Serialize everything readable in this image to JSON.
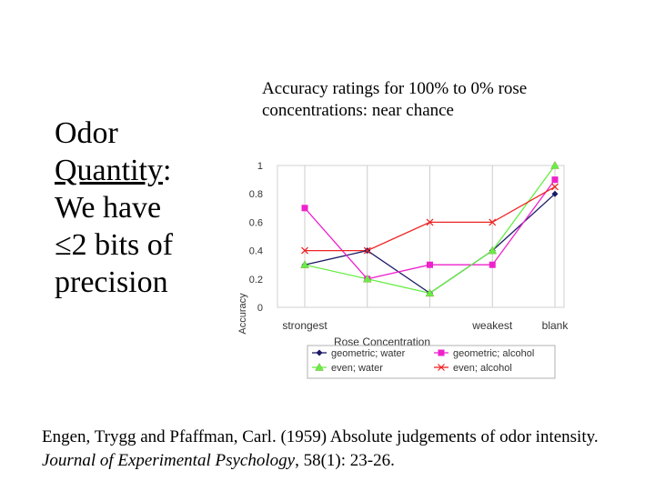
{
  "left_text": {
    "line1": "Odor",
    "line2_underlined": "Quantity",
    "line2_suffix": ":",
    "line3": "We have",
    "line4": "≤2 bits of",
    "line5": "precision"
  },
  "citation": {
    "part1": "Engen, Trygg and Pfaffman, Carl. (1959) Absolute judgements of odor intensity. ",
    "journal": "Journal of Experimental Psychology",
    "part2": ", 58(1): 23-26."
  },
  "colors": {
    "geometric_water": "#1a1a66",
    "geometric_alcohol": "#ee22cc",
    "even_water": "#66ee44",
    "even_alcohol": "#ee2222"
  },
  "chart_data": {
    "type": "line",
    "title": "Accuracy ratings for 100% to 0% rose concentrations: near chance",
    "xlabel": "Rose Concentration",
    "ylabel": "Accuracy",
    "ylim": [
      0,
      1
    ],
    "ytick_labels": [
      "0",
      "0.2",
      "0.4",
      "0.6",
      "0.8",
      "1"
    ],
    "ytick_values": [
      0,
      0.2,
      0.4,
      0.6,
      0.8,
      1
    ],
    "xtick_labels": [
      "strongest",
      "",
      "",
      "weakest",
      "blank"
    ],
    "categories": [
      1,
      2,
      3,
      4,
      5
    ],
    "series": [
      {
        "name": "geometric; water",
        "marker": "diamond",
        "color": "#1a1a66",
        "values": [
          0.3,
          0.4,
          0.1,
          0.4,
          0.8
        ]
      },
      {
        "name": "geometric; alcohol",
        "marker": "square",
        "color": "#ee22cc",
        "values": [
          0.7,
          0.2,
          0.3,
          0.3,
          0.9
        ]
      },
      {
        "name": "even; water",
        "marker": "triangle",
        "color": "#66ee44",
        "values": [
          0.3,
          0.2,
          0.1,
          0.4,
          1.0
        ]
      },
      {
        "name": "even; alcohol",
        "marker": "cross",
        "color": "#ee2222",
        "values": [
          0.4,
          0.4,
          0.6,
          0.6,
          0.85
        ]
      }
    ],
    "grid": true,
    "legend_position": "bottom"
  }
}
